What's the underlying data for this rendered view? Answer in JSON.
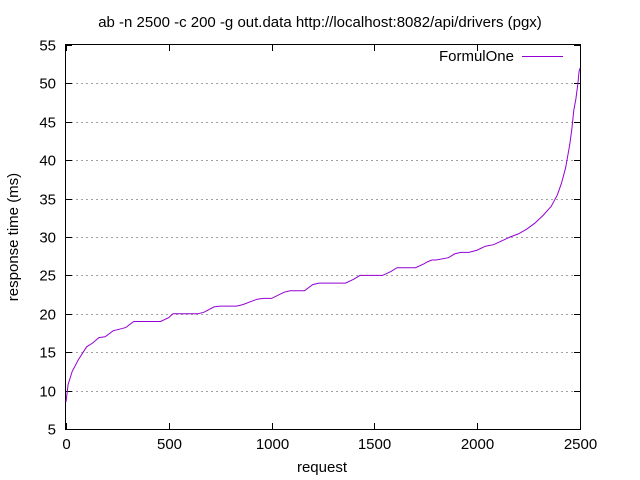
{
  "chart_data": {
    "type": "line",
    "title": "ab -n 2500 -c 200 -g out.data http://localhost:8082/api/drivers (pgx)",
    "xlabel": "request",
    "ylabel": "response time (ms)",
    "xlim": [
      0,
      2500
    ],
    "ylim": [
      5,
      55
    ],
    "xticks": [
      "0",
      "500",
      "1000",
      "1500",
      "2000",
      "2500"
    ],
    "yticks": [
      "5",
      "10",
      "15",
      "20",
      "25",
      "30",
      "35",
      "40",
      "45",
      "50",
      "55"
    ],
    "grid": "horizontal dotted",
    "legend_position": "top-right",
    "series": [
      {
        "name": "FormulOne",
        "color": "#9400d3",
        "x": [
          0,
          10,
          30,
          60,
          100,
          130,
          160,
          190,
          230,
          260,
          290,
          330,
          350,
          380,
          460,
          500,
          520,
          640,
          670,
          720,
          750,
          830,
          860,
          930,
          960,
          1000,
          1060,
          1090,
          1160,
          1200,
          1230,
          1360,
          1400,
          1430,
          1540,
          1580,
          1610,
          1670,
          1700,
          1740,
          1760,
          1780,
          1800,
          1860,
          1890,
          1920,
          1960,
          2000,
          2040,
          2080,
          2120,
          2160,
          2200,
          2240,
          2280,
          2320,
          2360,
          2390,
          2410,
          2430,
          2450,
          2460,
          2470,
          2480,
          2490,
          2495,
          2500
        ],
        "y": [
          8.5,
          10.8,
          12.5,
          14,
          15.7,
          16.2,
          16.9,
          17,
          17.8,
          18,
          18.2,
          19,
          19,
          19,
          19,
          19.5,
          20,
          20,
          20.2,
          20.9,
          21,
          21,
          21.2,
          21.9,
          22,
          22,
          22.8,
          23,
          23,
          23.8,
          24,
          24,
          24.5,
          25,
          25,
          25.5,
          26,
          26,
          26,
          26.5,
          26.8,
          27,
          27,
          27.3,
          27.8,
          28,
          28,
          28.3,
          28.8,
          29,
          29.5,
          30,
          30.4,
          31,
          31.8,
          32.8,
          34,
          35.5,
          37,
          39,
          42,
          44,
          46.5,
          48,
          50,
          51.5,
          52
        ]
      }
    ]
  }
}
